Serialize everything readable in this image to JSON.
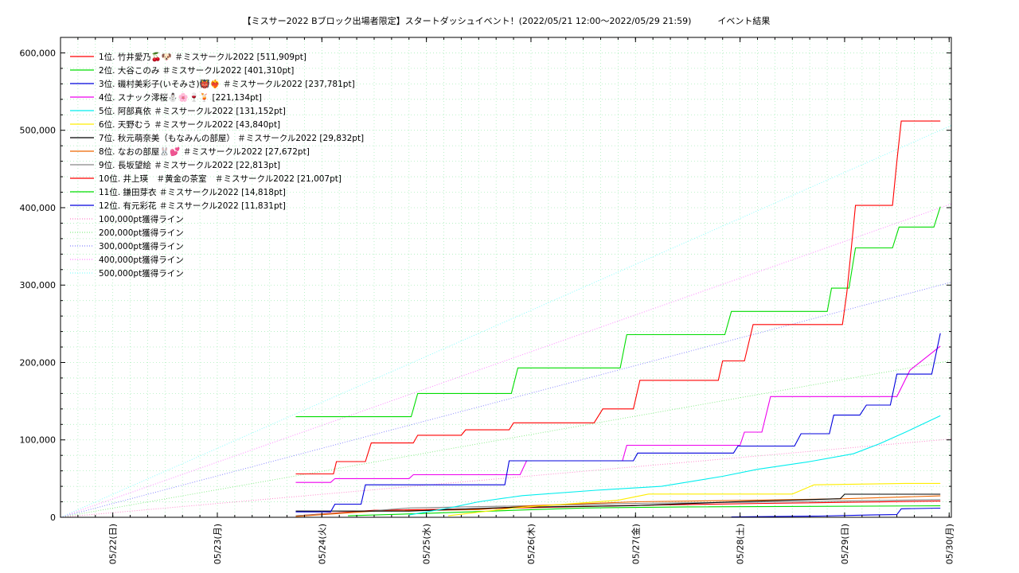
{
  "chart_data": {
    "type": "line",
    "title": "【ミスサー2022 Bブロック出場者限定】スタートダッシュイベント！(2022/05/21 12:00～2022/05/29 21:59)　　　イベント結果",
    "xlabel": "",
    "ylabel": "",
    "grid": true,
    "legend_position": "top-left",
    "xlim": [
      "2022-05-21 12:00",
      "2022-05-30 00:30"
    ],
    "ylim": [
      0,
      620000
    ],
    "x_ticks": [
      {
        "x": "2022-05-22 00:00",
        "label": "05/22(日)"
      },
      {
        "x": "2022-05-23 00:00",
        "label": "05/23(月)"
      },
      {
        "x": "2022-05-24 00:00",
        "label": "05/24(火)"
      },
      {
        "x": "2022-05-25 00:00",
        "label": "05/25(水)"
      },
      {
        "x": "2022-05-26 00:00",
        "label": "05/26(木)"
      },
      {
        "x": "2022-05-27 00:00",
        "label": "05/27(金)"
      },
      {
        "x": "2022-05-28 00:00",
        "label": "05/28(土)"
      },
      {
        "x": "2022-05-29 00:00",
        "label": "05/29(日)"
      },
      {
        "x": "2022-05-30 00:00",
        "label": "05/30(月)"
      }
    ],
    "y_ticks": [
      {
        "y": 0,
        "label": "0"
      },
      {
        "y": 100000,
        "label": "100,000"
      },
      {
        "y": 200000,
        "label": "200,000"
      },
      {
        "y": 300000,
        "label": "300,000"
      },
      {
        "y": 400000,
        "label": "400,000"
      },
      {
        "y": 500000,
        "label": "500,000"
      },
      {
        "y": 600000,
        "label": "600,000"
      }
    ],
    "series": [
      {
        "name": "1位. 竹井愛乃🍒🐶 ＃ミスサークル2022 [511,909pt]",
        "color": "#ff0000",
        "points": [
          [
            "2022-05-23 18:00",
            56000
          ],
          [
            "2022-05-24 02:40",
            56000
          ],
          [
            "2022-05-24 03:20",
            72000
          ],
          [
            "2022-05-24 10:00",
            72000
          ],
          [
            "2022-05-24 11:20",
            96000
          ],
          [
            "2022-05-24 21:00",
            96000
          ],
          [
            "2022-05-24 22:00",
            106000
          ],
          [
            "2022-05-25 08:00",
            106000
          ],
          [
            "2022-05-25 09:00",
            113000
          ],
          [
            "2022-05-25 19:00",
            113000
          ],
          [
            "2022-05-25 20:00",
            122000
          ],
          [
            "2022-05-26 14:30",
            122000
          ],
          [
            "2022-05-26 16:30",
            140000
          ],
          [
            "2022-05-26 23:30",
            140000
          ],
          [
            "2022-05-27 01:00",
            177000
          ],
          [
            "2022-05-27 19:00",
            177000
          ],
          [
            "2022-05-27 20:00",
            202000
          ],
          [
            "2022-05-28 01:00",
            202000
          ],
          [
            "2022-05-28 03:00",
            249000
          ],
          [
            "2022-05-28 23:30",
            249000
          ],
          [
            "2022-05-29 00:30",
            290000
          ],
          [
            "2022-05-29 01:30",
            345000
          ],
          [
            "2022-05-29 02:30",
            403000
          ],
          [
            "2022-05-29 11:00",
            403000
          ],
          [
            "2022-05-29 12:00",
            460000
          ],
          [
            "2022-05-29 13:00",
            511909
          ],
          [
            "2022-05-29 21:59",
            511909
          ]
        ]
      },
      {
        "name": "2位. 大谷このみ ＃ミスサークル2022 [401,310pt]",
        "color": "#00dd00",
        "points": [
          [
            "2022-05-23 18:00",
            130000
          ],
          [
            "2022-05-24 20:30",
            130000
          ],
          [
            "2022-05-24 22:00",
            160000
          ],
          [
            "2022-05-25 19:30",
            160000
          ],
          [
            "2022-05-25 21:00",
            193000
          ],
          [
            "2022-05-26 20:30",
            193000
          ],
          [
            "2022-05-26 22:00",
            236000
          ],
          [
            "2022-05-27 20:30",
            236000
          ],
          [
            "2022-05-27 22:00",
            266000
          ],
          [
            "2022-05-28 20:00",
            266000
          ],
          [
            "2022-05-28 21:00",
            296000
          ],
          [
            "2022-05-29 01:00",
            296000
          ],
          [
            "2022-05-29 02:30",
            348000
          ],
          [
            "2022-05-29 11:00",
            348000
          ],
          [
            "2022-05-29 12:30",
            375000
          ],
          [
            "2022-05-29 20:30",
            375000
          ],
          [
            "2022-05-29 21:59",
            401310
          ]
        ]
      },
      {
        "name": "3位. 磯村美彩子(いそみさ)👹❤️‍🔥 ＃ミスサークル2022 [237,781pt]",
        "color": "#0000dd",
        "points": [
          [
            "2022-05-23 18:00",
            7000
          ],
          [
            "2022-05-24 02:00",
            7000
          ],
          [
            "2022-05-24 03:00",
            17000
          ],
          [
            "2022-05-24 09:00",
            17000
          ],
          [
            "2022-05-24 10:00",
            42000
          ],
          [
            "2022-05-25 18:00",
            42000
          ],
          [
            "2022-05-25 19:00",
            73000
          ],
          [
            "2022-05-26 23:30",
            73000
          ],
          [
            "2022-05-27 00:30",
            83000
          ],
          [
            "2022-05-27 22:30",
            83000
          ],
          [
            "2022-05-27 23:30",
            92000
          ],
          [
            "2022-05-28 12:30",
            92000
          ],
          [
            "2022-05-28 14:00",
            108000
          ],
          [
            "2022-05-28 20:30",
            108000
          ],
          [
            "2022-05-28 21:30",
            132000
          ],
          [
            "2022-05-29 03:30",
            132000
          ],
          [
            "2022-05-29 05:00",
            145000
          ],
          [
            "2022-05-29 10:30",
            145000
          ],
          [
            "2022-05-29 12:00",
            185000
          ],
          [
            "2022-05-29 20:00",
            185000
          ],
          [
            "2022-05-29 21:59",
            237781
          ]
        ]
      },
      {
        "name": "4位. スナック澪桜⛄🌸🍷🍹 [221,134pt]",
        "color": "#ee00ee",
        "points": [
          [
            "2022-05-23 18:00",
            45000
          ],
          [
            "2022-05-24 02:00",
            45000
          ],
          [
            "2022-05-24 03:00",
            50000
          ],
          [
            "2022-05-24 20:00",
            50000
          ],
          [
            "2022-05-24 21:00",
            55000
          ],
          [
            "2022-05-25 21:30",
            55000
          ],
          [
            "2022-05-25 23:00",
            73000
          ],
          [
            "2022-05-26 21:00",
            73000
          ],
          [
            "2022-05-26 22:00",
            93000
          ],
          [
            "2022-05-28 00:00",
            93000
          ],
          [
            "2022-05-28 01:00",
            110000
          ],
          [
            "2022-05-28 05:00",
            110000
          ],
          [
            "2022-05-28 07:00",
            156000
          ],
          [
            "2022-05-29 12:00",
            156000
          ],
          [
            "2022-05-29 15:00",
            190000
          ],
          [
            "2022-05-29 21:59",
            221134
          ]
        ]
      },
      {
        "name": "5位. 阿部真依 ＃ミスサークル2022 [131,152pt]",
        "color": "#00eeee",
        "points": [
          [
            "2022-05-24 20:00",
            3000
          ],
          [
            "2022-05-25 06:00",
            13000
          ],
          [
            "2022-05-25 12:00",
            20000
          ],
          [
            "2022-05-25 22:00",
            28000
          ],
          [
            "2022-05-26 15:00",
            35000
          ],
          [
            "2022-05-27 06:00",
            40000
          ],
          [
            "2022-05-27 20:00",
            53000
          ],
          [
            "2022-05-28 04:00",
            62000
          ],
          [
            "2022-05-28 16:00",
            72000
          ],
          [
            "2022-05-29 02:00",
            82000
          ],
          [
            "2022-05-29 08:00",
            95000
          ],
          [
            "2022-05-29 14:00",
            110000
          ],
          [
            "2022-05-29 21:59",
            131152
          ]
        ]
      },
      {
        "name": "6位. 天野むう ＃ミスサークル2022 [43,840pt]",
        "color": "#ffee00",
        "points": [
          [
            "2022-05-25 05:00",
            2000
          ],
          [
            "2022-05-25 20:00",
            12000
          ],
          [
            "2022-05-26 20:00",
            22000
          ],
          [
            "2022-05-27 03:00",
            30000
          ],
          [
            "2022-05-28 12:00",
            30000
          ],
          [
            "2022-05-28 17:00",
            42000
          ],
          [
            "2022-05-29 14:00",
            43840
          ],
          [
            "2022-05-29 21:59",
            43840
          ]
        ]
      },
      {
        "name": "7位. 秋元萌奈美（もなみんの部屋） ＃ミスサークル2022 [29,832pt]",
        "color": "#000000",
        "points": [
          [
            "2022-05-23 18:00",
            8000
          ],
          [
            "2022-05-24 20:00",
            8000
          ],
          [
            "2022-05-25 20:00",
            13000
          ],
          [
            "2022-05-26 23:00",
            15000
          ],
          [
            "2022-05-27 23:00",
            20000
          ],
          [
            "2022-05-28 23:00",
            24000
          ],
          [
            "2022-05-29 00:00",
            29832
          ],
          [
            "2022-05-29 21:59",
            29832
          ]
        ]
      },
      {
        "name": "8位. なおの部屋🐰💕 ＃ミスサークル2022 [27,672pt]",
        "color": "#ee6600",
        "points": [
          [
            "2022-05-23 18:00",
            1000
          ],
          [
            "2022-05-24 12:00",
            8000
          ],
          [
            "2022-05-25 12:00",
            10000
          ],
          [
            "2022-05-26 00:00",
            15000
          ],
          [
            "2022-05-27 00:00",
            20000
          ],
          [
            "2022-05-28 02:00",
            22000
          ],
          [
            "2022-05-29 00:00",
            24000
          ],
          [
            "2022-05-29 21:59",
            27672
          ]
        ]
      },
      {
        "name": "9位. 長坂望絵 ＃ミスサークル2022 [22,813pt]",
        "color": "#888888",
        "points": [
          [
            "2022-05-23 18:00",
            2000
          ],
          [
            "2022-05-24 06:00",
            6000
          ],
          [
            "2022-05-24 20:00",
            12000
          ],
          [
            "2022-05-26 00:00",
            15000
          ],
          [
            "2022-05-27 00:00",
            18000
          ],
          [
            "2022-05-28 12:00",
            20000
          ],
          [
            "2022-05-29 21:59",
            22813
          ]
        ]
      },
      {
        "name": "10位. 井上瑛　＃黄金の茶室　＃ミスサークル2022 [21,007pt]",
        "color": "#ff0000",
        "points": [
          [
            "2022-05-23 18:00",
            2000
          ],
          [
            "2022-05-24 12:00",
            9000
          ],
          [
            "2022-05-25 12:00",
            11000
          ],
          [
            "2022-05-26 12:00",
            14000
          ],
          [
            "2022-05-27 06:00",
            16000
          ],
          [
            "2022-05-28 06:00",
            18000
          ],
          [
            "2022-05-29 21:59",
            21007
          ]
        ]
      },
      {
        "name": "11位. 鎌田芽衣 ＃ミスサークル2022 [14,818pt]",
        "color": "#00dd00",
        "points": [
          [
            "2022-05-24 06:00",
            2000
          ],
          [
            "2022-05-25 00:00",
            5000
          ],
          [
            "2022-05-25 20:00",
            9000
          ],
          [
            "2022-05-26 12:00",
            12000
          ],
          [
            "2022-05-27 12:00",
            13500
          ],
          [
            "2022-05-29 21:59",
            14818
          ]
        ]
      },
      {
        "name": "12位. 有元彩花 ＃ミスサークル2022 [11,831pt]",
        "color": "#0000dd",
        "points": [
          [
            "2022-05-27 22:00",
            500
          ],
          [
            "2022-05-28 18:00",
            1500
          ],
          [
            "2022-05-29 06:00",
            3000
          ],
          [
            "2022-05-29 12:00",
            3500
          ],
          [
            "2022-05-29 13:00",
            11000
          ],
          [
            "2022-05-29 21:59",
            11831
          ]
        ]
      }
    ],
    "reference_lines": [
      {
        "name": "100,000pt獲得ライン",
        "color": "#ff88cc",
        "target": 100000
      },
      {
        "name": "200,000pt獲得ライン",
        "color": "#88ee88",
        "target": 200000
      },
      {
        "name": "300,000pt獲得ライン",
        "color": "#8888ff",
        "target": 300000
      },
      {
        "name": "400,000pt獲得ライン",
        "color": "#ff88ff",
        "target": 400000
      },
      {
        "name": "500,000pt獲得ライン",
        "color": "#88ffff",
        "target": 500000
      }
    ],
    "reference_start": "2022-05-21 12:00",
    "reference_end": "2022-05-29 21:59"
  }
}
